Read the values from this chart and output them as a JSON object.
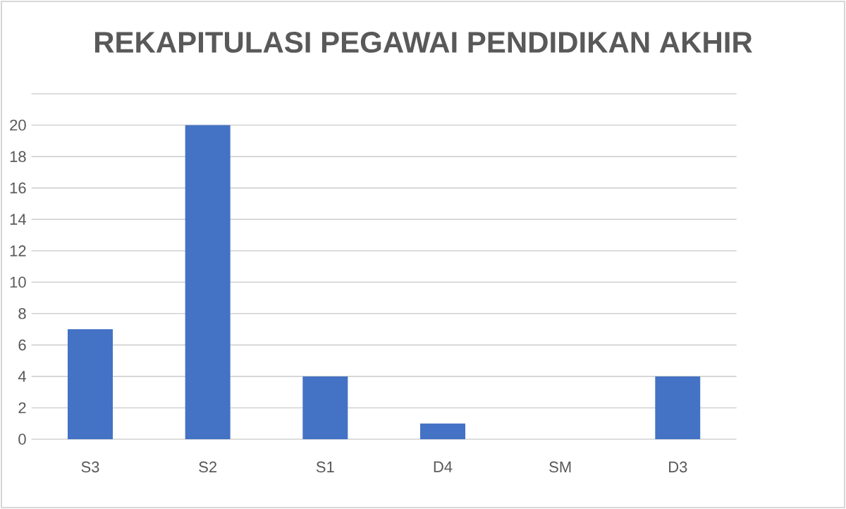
{
  "chart_data": {
    "type": "bar",
    "title": "REKAPITULASI PEGAWAI PENDIDIKAN AKHIR",
    "categories": [
      "S3",
      "S2",
      "S1",
      "D4",
      "SM",
      "D3"
    ],
    "values": [
      7,
      20,
      4,
      1,
      0,
      4
    ],
    "color": "#4472c4",
    "ylim": [
      0,
      22
    ],
    "yticks": [
      0,
      2,
      4,
      6,
      8,
      10,
      12,
      14,
      16,
      18,
      20,
      {
        "value": 22,
        "label": null
      }
    ],
    "grid": "y"
  }
}
